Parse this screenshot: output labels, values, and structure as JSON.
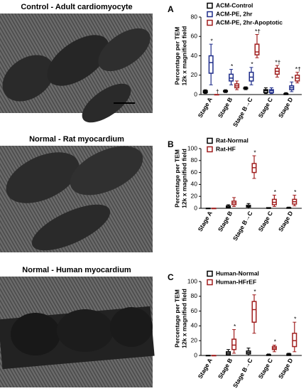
{
  "images": [
    {
      "title": "Control - Adult cardiomyocyte"
    },
    {
      "title": "Normal - Rat myocardium"
    },
    {
      "title": "Normal - Human myocardium"
    }
  ],
  "chart_data": [
    {
      "type": "box",
      "panel": "A",
      "y_label": [
        "Percentage per TEM",
        "12k x magnified field"
      ],
      "categories": [
        "Stage A",
        "Stage B",
        "Stage B→C",
        "Stage C",
        "Stage D"
      ],
      "ylim": [
        0,
        80
      ],
      "yticks": [
        0,
        20,
        40,
        60,
        80
      ],
      "series": [
        {
          "name": "ACM-Control",
          "color": "#000000",
          "values": [
            {
              "min": 1,
              "q1": 2,
              "median": 3,
              "q3": 4,
              "max": 5
            },
            {
              "min": 2,
              "q1": 3,
              "median": 3,
              "q3": 4,
              "max": 5
            },
            {
              "min": 5,
              "q1": 6,
              "median": 7,
              "q3": 7,
              "max": 8
            },
            {
              "min": 1,
              "q1": 2,
              "median": 4,
              "q3": 5,
              "max": 7
            },
            {
              "min": 0,
              "q1": 0,
              "median": 1,
              "q3": 1,
              "max": 2
            }
          ],
          "markers": [
            null,
            null,
            null,
            null,
            null
          ]
        },
        {
          "name": "ACM-PE, 2hr",
          "color": "#1f2d8a",
          "values": [
            {
              "min": 10,
              "q1": 22,
              "median": 33,
              "q3": 40,
              "max": 52
            },
            {
              "min": 10,
              "q1": 14,
              "median": 17,
              "q3": 21,
              "max": 26
            },
            {
              "min": 10,
              "q1": 14,
              "median": 18,
              "q3": 23,
              "max": 28
            },
            {
              "min": 1,
              "q1": 2,
              "median": 4,
              "q3": 5,
              "max": 7
            },
            {
              "min": 3,
              "q1": 5,
              "median": 7,
              "q3": 9,
              "max": 13
            }
          ],
          "markers": [
            "*",
            "*",
            "*",
            null,
            "*"
          ]
        },
        {
          "name": "ACM-PE, 2hr-Apoptotic",
          "color": "#a01e1e",
          "values": [
            {
              "min": 0,
              "q1": 0,
              "median": 0,
              "q3": 0,
              "max": 0
            },
            {
              "min": 5,
              "q1": 7,
              "median": 9,
              "q3": 11,
              "max": 14
            },
            {
              "min": 38,
              "q1": 41,
              "median": 44,
              "q3": 52,
              "max": 62
            },
            {
              "min": 18,
              "q1": 21,
              "median": 24,
              "q3": 27,
              "max": 30
            },
            {
              "min": 12,
              "q1": 14,
              "median": 17,
              "q3": 20,
              "max": 23
            }
          ],
          "markers": [
            "†",
            null,
            "*†",
            "*†",
            "*†"
          ]
        }
      ]
    },
    {
      "type": "box",
      "panel": "B",
      "y_label": [
        "Percentage per TEM",
        "12k x magnified field"
      ],
      "categories": [
        "Stage A",
        "Stage B",
        "Stage B→C",
        "Stage C",
        "Stage D"
      ],
      "ylim": [
        0,
        100
      ],
      "yticks": [
        0,
        20,
        40,
        60,
        80,
        100
      ],
      "series": [
        {
          "name": "Rat-Normal",
          "color": "#000000",
          "values": [
            {
              "min": 0,
              "q1": 0,
              "median": 0,
              "q3": 0,
              "max": 0
            },
            {
              "min": 0,
              "q1": 1,
              "median": 2,
              "q3": 4,
              "max": 6
            },
            {
              "min": 0,
              "q1": 2,
              "median": 3,
              "q3": 5,
              "max": 8
            },
            {
              "min": 0,
              "q1": 0,
              "median": 0,
              "q3": 1,
              "max": 1
            },
            {
              "min": 0,
              "q1": 0,
              "median": 1,
              "q3": 1,
              "max": 2
            }
          ],
          "markers": [
            null,
            null,
            null,
            null,
            null
          ]
        },
        {
          "name": "Rat-HF",
          "color": "#a01e1e",
          "values": [
            {
              "min": 0,
              "q1": 0,
              "median": 0,
              "q3": 0,
              "max": 0
            },
            {
              "min": 3,
              "q1": 6,
              "median": 9,
              "q3": 12,
              "max": 18
            },
            {
              "min": 50,
              "q1": 60,
              "median": 68,
              "q3": 75,
              "max": 88
            },
            {
              "min": 3,
              "q1": 6,
              "median": 10,
              "q3": 15,
              "max": 22
            },
            {
              "min": 4,
              "q1": 7,
              "median": 11,
              "q3": 15,
              "max": 22
            }
          ],
          "markers": [
            null,
            null,
            "*",
            "*",
            "*"
          ]
        }
      ]
    },
    {
      "type": "box",
      "panel": "C",
      "y_label": [
        "Percentage per TEM",
        "12k x magnified field"
      ],
      "categories": [
        "Stage A",
        "Stage B",
        "Stage B→C",
        "Stage C",
        "Stage D"
      ],
      "ylim": [
        0,
        100
      ],
      "yticks": [
        0,
        20,
        40,
        60,
        80,
        100
      ],
      "series": [
        {
          "name": "Human-Normal",
          "color": "#000000",
          "values": [
            {
              "min": 0,
              "q1": 0,
              "median": 0,
              "q3": 0,
              "max": 0
            },
            {
              "min": 0,
              "q1": 1,
              "median": 3,
              "q3": 5,
              "max": 8
            },
            {
              "min": 0,
              "q1": 2,
              "median": 4,
              "q3": 6,
              "max": 10
            },
            {
              "min": 0,
              "q1": 0,
              "median": 1,
              "q3": 1,
              "max": 2
            },
            {
              "min": 0,
              "q1": 0,
              "median": 1,
              "q3": 2,
              "max": 3
            }
          ],
          "markers": [
            null,
            null,
            null,
            null,
            null
          ]
        },
        {
          "name": "Human-HFrEF",
          "color": "#a01e1e",
          "values": [
            {
              "min": 0,
              "q1": 0,
              "median": 0,
              "q3": 0,
              "max": 0
            },
            {
              "min": 3,
              "q1": 8,
              "median": 14,
              "q3": 22,
              "max": 35
            },
            {
              "min": 30,
              "q1": 45,
              "median": 62,
              "q3": 73,
              "max": 82
            },
            {
              "min": 5,
              "q1": 8,
              "median": 10,
              "q3": 12,
              "max": 14
            },
            {
              "min": 5,
              "q1": 12,
              "median": 20,
              "q3": 30,
              "max": 45
            }
          ],
          "markers": [
            null,
            "*",
            "*",
            "*",
            "*"
          ]
        }
      ]
    }
  ]
}
